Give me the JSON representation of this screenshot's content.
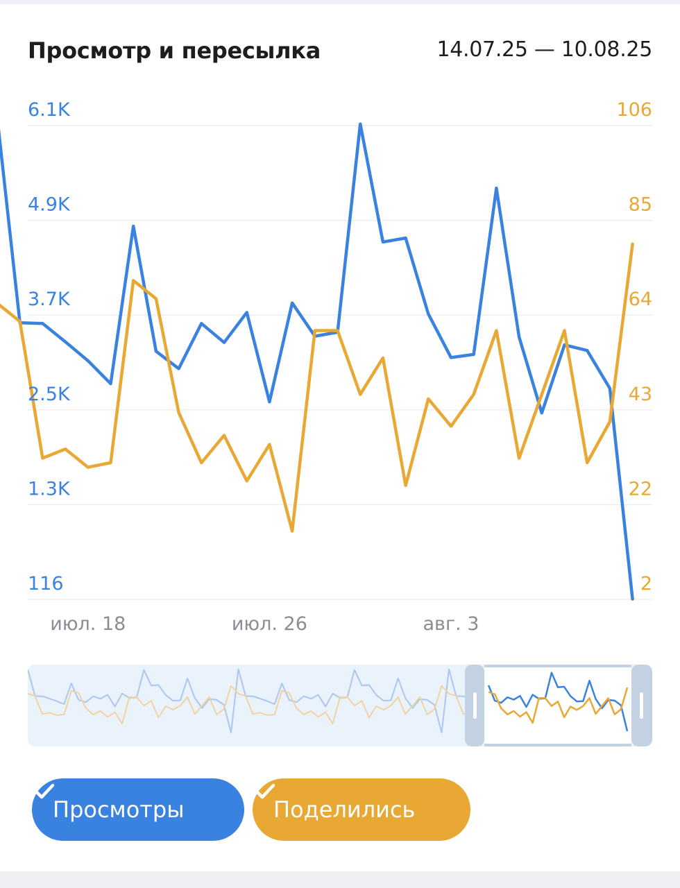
{
  "header": {
    "title": "Просмотр и пересылка",
    "date_range": "14.07.25 — 10.08.25"
  },
  "colors": {
    "views": "#3a82e0",
    "shares": "#e8a833",
    "grid": "#eceef1",
    "xtick": "#8a8d93"
  },
  "chart_data": {
    "type": "line",
    "title": "Просмотр и пересылка",
    "x_start": "14.07.25",
    "x_end": "10.08.25",
    "x_ticks": [
      "июл. 18",
      "июл. 26",
      "авг. 3"
    ],
    "y_left_ticks": [
      "6.1K",
      "4.9K",
      "3.7K",
      "2.5K",
      "1.3K",
      "116"
    ],
    "y_right_ticks": [
      "106",
      "85",
      "64",
      "43",
      "22",
      "2"
    ],
    "y_left_range": [
      116,
      6100
    ],
    "y_right_range": [
      2,
      106
    ],
    "grid": true,
    "series": [
      {
        "name": "Просмотры",
        "axis": "left",
        "values": [
          6200,
          3610,
          3600,
          3370,
          3130,
          2840,
          4830,
          3250,
          3030,
          3600,
          3360,
          3740,
          2610,
          3860,
          3440,
          3490,
          6120,
          4630,
          4680,
          3720,
          3170,
          3210,
          5310,
          3430,
          2470,
          3330,
          3260,
          2780,
          120
        ]
      },
      {
        "name": "Поделились",
        "axis": "right",
        "values": [
          67,
          63,
          33,
          35,
          31,
          32,
          72,
          68,
          43,
          32,
          38,
          28,
          36,
          17,
          61,
          61,
          47,
          55,
          27,
          46,
          40,
          47,
          61,
          33,
          47,
          61,
          32,
          41,
          80
        ]
      }
    ]
  },
  "legend": {
    "views_label": "Просмотры",
    "shares_label": "Поделились"
  }
}
